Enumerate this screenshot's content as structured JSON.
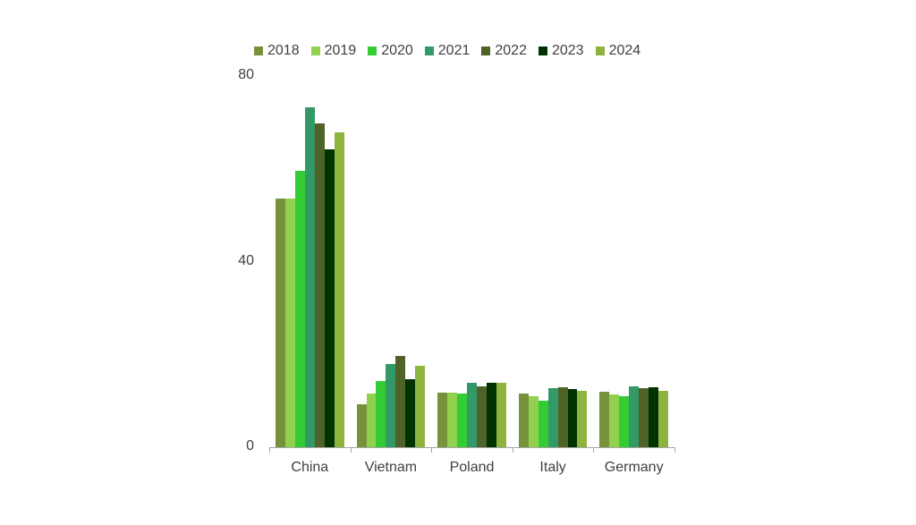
{
  "chart_data": {
    "type": "bar",
    "title": "",
    "xlabel": "",
    "ylabel": "",
    "ylim": [
      0,
      80
    ],
    "yticks": [
      0,
      40,
      80
    ],
    "grid": false,
    "legend_position": "top",
    "categories": [
      "China",
      "Vietnam",
      "Poland",
      "Italy",
      "Germany"
    ],
    "series": [
      {
        "name": "2018",
        "color": "#76933C",
        "values": [
          53.6,
          9.2,
          11.8,
          11.6,
          11.9
        ]
      },
      {
        "name": "2019",
        "color": "#92D050",
        "values": [
          53.6,
          11.6,
          11.8,
          10.9,
          11.4
        ]
      },
      {
        "name": "2020",
        "color": "#33CC33",
        "values": [
          59.5,
          14.3,
          11.6,
          10.0,
          11.0
        ]
      },
      {
        "name": "2021",
        "color": "#339966",
        "values": [
          73.2,
          17.9,
          13.9,
          12.7,
          13.1
        ]
      },
      {
        "name": "2022",
        "color": "#4F6228",
        "values": [
          69.7,
          19.6,
          13.1,
          12.9,
          12.7
        ]
      },
      {
        "name": "2023",
        "color": "#003300",
        "values": [
          64.2,
          14.6,
          13.8,
          12.5,
          12.9
        ]
      },
      {
        "name": "2024",
        "color": "#8DB43E",
        "values": [
          67.8,
          17.5,
          13.8,
          12.1,
          12.1
        ]
      }
    ]
  }
}
